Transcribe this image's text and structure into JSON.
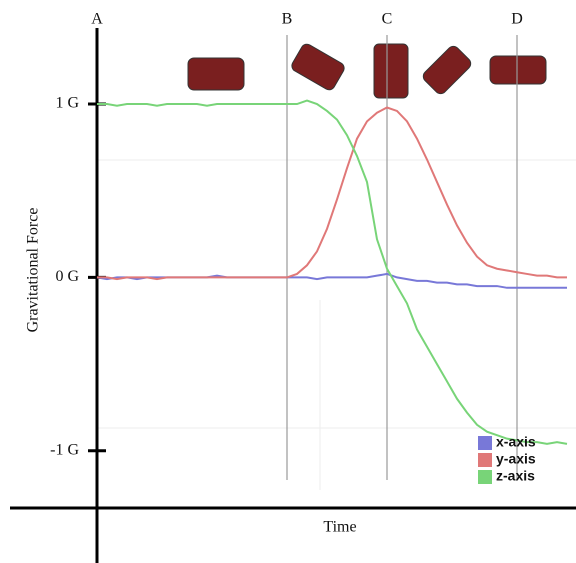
{
  "chart_data": {
    "type": "line",
    "y_label": "Gravitational Force",
    "x_label": "Time",
    "categories": [
      "A",
      null,
      null,
      null,
      null,
      null,
      null,
      null,
      null,
      null,
      null,
      null,
      null,
      null,
      null,
      null,
      null,
      null,
      null,
      "B",
      null,
      null,
      null,
      null,
      null,
      null,
      null,
      null,
      null,
      "C",
      null,
      null,
      null,
      null,
      null,
      null,
      null,
      null,
      null,
      null,
      null,
      null,
      "D",
      null,
      null,
      null,
      null,
      null
    ],
    "ylim": [
      -1.33,
      1.6
    ],
    "yticks": [
      {
        "value": 1,
        "label": "1 G"
      },
      {
        "value": 0,
        "label": "0 G"
      },
      {
        "value": -1,
        "label": "-1 G"
      }
    ],
    "legend": "bottom-right",
    "series": [
      {
        "name": "x-axis",
        "color": "#7878d8",
        "values": [
          0,
          -0.01,
          0,
          0,
          -0.01,
          0,
          0,
          0,
          0,
          0,
          0,
          0,
          0.01,
          0,
          0,
          0,
          0,
          0,
          0,
          0,
          0,
          0,
          -0.01,
          0,
          0,
          0,
          0,
          0,
          0.01,
          0.02,
          0,
          -0.01,
          -0.02,
          -0.02,
          -0.03,
          -0.03,
          -0.04,
          -0.04,
          -0.05,
          -0.05,
          -0.05,
          -0.06,
          -0.06,
          -0.06,
          -0.06,
          -0.06,
          -0.06,
          -0.06
        ]
      },
      {
        "name": "y-axis",
        "color": "#e07878",
        "values": [
          0,
          0,
          -0.01,
          0,
          0,
          0,
          -0.01,
          0,
          0,
          0,
          0,
          0,
          0,
          0,
          0,
          0,
          0,
          0,
          0,
          0,
          0.02,
          0.07,
          0.15,
          0.28,
          0.45,
          0.63,
          0.8,
          0.9,
          0.95,
          0.98,
          0.96,
          0.9,
          0.8,
          0.68,
          0.55,
          0.42,
          0.3,
          0.2,
          0.12,
          0.07,
          0.05,
          0.04,
          0.03,
          0.02,
          0.01,
          0.01,
          0,
          0
        ]
      },
      {
        "name": "z-axis",
        "color": "#78d478",
        "values": [
          1,
          1,
          0.99,
          1,
          1,
          1,
          0.99,
          1,
          1,
          1,
          1,
          0.99,
          1,
          1,
          1,
          1,
          1,
          1,
          1,
          1,
          1,
          1.02,
          1,
          0.96,
          0.91,
          0.82,
          0.7,
          0.55,
          0.22,
          0.05,
          -0.05,
          -0.15,
          -0.3,
          -0.4,
          -0.5,
          -0.6,
          -0.7,
          -0.78,
          -0.85,
          -0.89,
          -0.91,
          -0.93,
          -0.94,
          -0.95,
          -0.95,
          -0.96,
          -0.95,
          -0.96
        ]
      }
    ]
  }
}
